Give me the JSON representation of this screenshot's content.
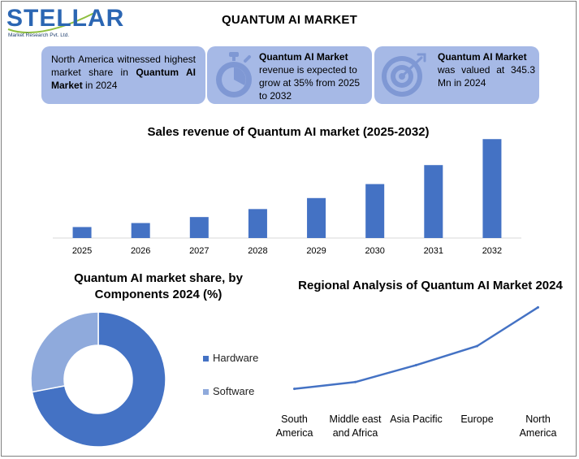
{
  "logo": {
    "text": "STELLAR",
    "subtext": "Market Research Pvt. Ltd."
  },
  "title": "QUANTUM AI MARKET",
  "cards": {
    "c1": {
      "part1": "North America witnessed highest market share in ",
      "bold": "Quantum AI Market",
      "part2": " in 2024"
    },
    "c2": {
      "bold": "Quantum AI Market",
      "text": "revenue is expected to grow at 35% from 2025 to 2032",
      "icon": "stopwatch-icon"
    },
    "c3": {
      "bold": "Quantum AI Market",
      "text": "was valued at 345.3 Mn in 2024",
      "icon": "target-icon"
    }
  },
  "colors": {
    "accent": "#4472c4",
    "light": "#a5b9e6",
    "card": "#a6b9e6",
    "pie_secondary": "#8faadc"
  },
  "charts_text": {
    "bar_title": "Sales revenue of Quantum AI market (2025-2032)",
    "donut_title": "Quantum AI market share, by Components 2024 (%)",
    "line_title": "Regional Analysis of Quantum AI Market 2024"
  },
  "chart_data": [
    {
      "type": "bar",
      "title": "Sales revenue of Quantum AI market (2025-2032)",
      "categories": [
        "2025",
        "2026",
        "2027",
        "2028",
        "2029",
        "2030",
        "2031",
        "2032"
      ],
      "values": [
        11,
        15,
        21,
        29,
        40,
        54,
        73,
        99
      ],
      "ylim": [
        0,
        100
      ],
      "grid": false
    },
    {
      "type": "pie",
      "title": "Quantum AI market share, by Components 2024 (%)",
      "categories": [
        "Hardware",
        "Software"
      ],
      "values": [
        72,
        28
      ],
      "legend": "right"
    },
    {
      "type": "line",
      "title": "Regional Analysis of Quantum AI Market 2024",
      "categories": [
        "South America",
        "Middle east and Africa",
        "Asia Pacific",
        "Europe",
        "North America"
      ],
      "values": [
        10,
        20,
        45,
        73,
        130
      ],
      "ylim": [
        0,
        140
      ],
      "grid": false
    }
  ]
}
